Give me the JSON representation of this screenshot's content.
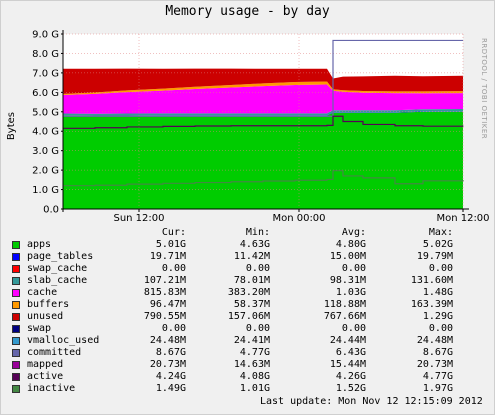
{
  "title": "Memory usage - by day",
  "side_text": "RRDTOOL / TOBI OETIKER",
  "colors": {
    "background": "#f0f0f0",
    "plot_bg": "#ffffff",
    "apps": "#00cc00",
    "page_tables": "#0000ff",
    "swap_cache": "#ff0000",
    "slab_cache": "#339999",
    "cache": "#ff00ff",
    "buffers": "#ff9900",
    "unused": "#cc0000",
    "swap": "#000080",
    "vmalloc_used": "#3399cc",
    "committed": "#6666aa",
    "mapped": "#990099",
    "active": "#550055",
    "inactive": "#448844"
  },
  "legend": {
    "headers": {
      "cur": "Cur:",
      "min": "Min:",
      "avg": "Avg:",
      "max": "Max:"
    },
    "rows": [
      {
        "name": "apps",
        "color": "#00cc00",
        "cur": "5.01G",
        "min": "4.63G",
        "avg": "4.80G",
        "max": "5.02G"
      },
      {
        "name": "page_tables",
        "color": "#0000ff",
        "cur": "19.71M",
        "min": "11.42M",
        "avg": "15.00M",
        "max": "19.79M"
      },
      {
        "name": "swap_cache",
        "color": "#ff0000",
        "cur": "0.00",
        "min": "0.00",
        "avg": "0.00",
        "max": "0.00"
      },
      {
        "name": "slab_cache",
        "color": "#339999",
        "cur": "107.21M",
        "min": "78.01M",
        "avg": "98.31M",
        "max": "131.60M"
      },
      {
        "name": "cache",
        "color": "#ff00ff",
        "cur": "815.83M",
        "min": "383.20M",
        "avg": "1.03G",
        "max": "1.48G"
      },
      {
        "name": "buffers",
        "color": "#ff9900",
        "cur": "96.47M",
        "min": "58.37M",
        "avg": "118.88M",
        "max": "163.39M"
      },
      {
        "name": "unused",
        "color": "#cc0000",
        "cur": "790.55M",
        "min": "157.06M",
        "avg": "767.66M",
        "max": "1.29G"
      },
      {
        "name": "swap",
        "color": "#000080",
        "cur": "0.00",
        "min": "0.00",
        "avg": "0.00",
        "max": "0.00"
      },
      {
        "name": "vmalloc_used",
        "color": "#3399cc",
        "cur": "24.48M",
        "min": "24.41M",
        "avg": "24.44M",
        "max": "24.48M"
      },
      {
        "name": "committed",
        "color": "#6666aa",
        "cur": "8.67G",
        "min": "4.77G",
        "avg": "6.43G",
        "max": "8.67G"
      },
      {
        "name": "mapped",
        "color": "#990099",
        "cur": "20.73M",
        "min": "14.63M",
        "avg": "15.44M",
        "max": "20.73M"
      },
      {
        "name": "active",
        "color": "#550055",
        "cur": "4.24G",
        "min": "4.08G",
        "avg": "4.26G",
        "max": "4.77G"
      },
      {
        "name": "inactive",
        "color": "#448844",
        "cur": "1.49G",
        "min": "1.01G",
        "avg": "1.52G",
        "max": "1.97G"
      }
    ]
  },
  "last_update": "Last update:  Mon Nov 12 12:15:09 2012",
  "chart_data": {
    "type": "area",
    "title": "Memory usage - by day",
    "ylabel": "Bytes",
    "ylim": [
      0,
      9.0
    ],
    "y_unit": "G",
    "y_ticks": [
      "0.0",
      "1.0 G",
      "2.0 G",
      "3.0 G",
      "4.0 G",
      "5.0 G",
      "6.0 G",
      "7.0 G",
      "8.0 G",
      "9.0 G"
    ],
    "x_ticks": [
      "Sun 12:00",
      "Mon 00:00",
      "Mon 12:00"
    ],
    "x": [
      0,
      0.08,
      0.16,
      0.25,
      0.33,
      0.42,
      0.5,
      0.58,
      0.66,
      0.675,
      0.7,
      0.75,
      0.83,
      0.9,
      1.0
    ],
    "stacked_series": [
      {
        "name": "apps",
        "values": [
          4.82,
          4.8,
          4.8,
          4.8,
          4.8,
          4.8,
          4.8,
          4.8,
          4.8,
          4.95,
          4.95,
          4.95,
          4.95,
          5.0,
          5.01
        ]
      },
      {
        "name": "page_tables",
        "values": [
          0.01,
          0.01,
          0.01,
          0.02,
          0.02,
          0.02,
          0.02,
          0.02,
          0.02,
          0.02,
          0.02,
          0.02,
          0.02,
          0.02,
          0.02
        ]
      },
      {
        "name": "slab_cache",
        "values": [
          0.08,
          0.09,
          0.1,
          0.1,
          0.1,
          0.1,
          0.1,
          0.1,
          0.1,
          0.11,
          0.11,
          0.11,
          0.11,
          0.11,
          0.11
        ]
      },
      {
        "name": "cache",
        "values": [
          0.95,
          1.02,
          1.1,
          1.17,
          1.25,
          1.33,
          1.4,
          1.46,
          1.48,
          1.0,
          0.95,
          0.9,
          0.88,
          0.82,
          0.82
        ]
      },
      {
        "name": "buffers",
        "values": [
          0.06,
          0.07,
          0.09,
          0.1,
          0.12,
          0.13,
          0.14,
          0.15,
          0.16,
          0.08,
          0.08,
          0.09,
          0.09,
          0.1,
          0.1
        ]
      },
      {
        "name": "unused",
        "values": [
          1.29,
          1.22,
          1.12,
          1.02,
          0.93,
          0.84,
          0.75,
          0.68,
          0.65,
          0.55,
          0.7,
          0.75,
          0.8,
          0.78,
          0.79
        ]
      }
    ],
    "line_series": [
      {
        "name": "committed",
        "values": [
          4.77,
          4.77,
          4.77,
          4.77,
          4.77,
          4.77,
          4.77,
          4.77,
          4.77,
          8.67,
          8.67,
          8.67,
          8.67,
          8.67,
          8.67
        ]
      },
      {
        "name": "active",
        "values": [
          4.15,
          4.18,
          4.22,
          4.25,
          4.27,
          4.28,
          4.28,
          4.28,
          4.3,
          4.77,
          4.5,
          4.35,
          4.28,
          4.26,
          4.24
        ]
      },
      {
        "name": "inactive",
        "values": [
          1.2,
          1.22,
          1.28,
          1.32,
          1.36,
          1.4,
          1.44,
          1.48,
          1.52,
          1.97,
          1.7,
          1.6,
          1.3,
          1.45,
          1.49
        ]
      }
    ]
  }
}
